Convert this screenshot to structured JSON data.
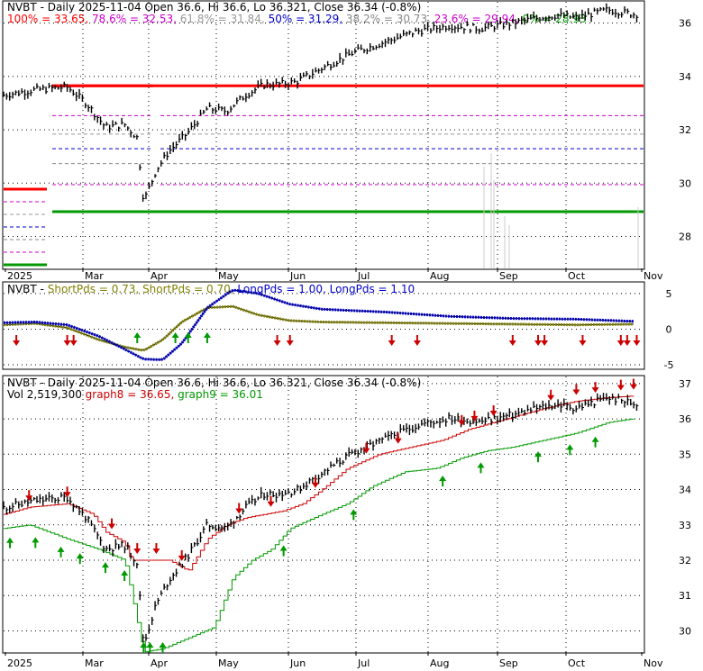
{
  "chart_data": [
    {
      "type": "line",
      "panel": "price-fibonacci",
      "title": "NVBT - Daily 2025-11-04 Open 36.6, Hi 36.6, Lo 36.321, Close 36.34 (-0.8%)",
      "fib_levels": [
        {
          "label": "100%",
          "value": 33.65,
          "text": "100% = 33.65",
          "color": "#ff0000"
        },
        {
          "label": "78.6%",
          "value": 32.53,
          "text": "78.6% = 32.53",
          "color": "#cc00cc"
        },
        {
          "label": "61.8%",
          "value": 31.84,
          "text": "61.8% = 31.84",
          "color": "#999999"
        },
        {
          "label": "50%",
          "value": 31.29,
          "text": "50% = 31.29",
          "color": "#0000cc"
        },
        {
          "label": "38.2%",
          "value": 30.73,
          "text": "38.2% = 30.73",
          "color": "#888888"
        },
        {
          "label": "23.6%",
          "value": 29.94,
          "text": "23.6% = 29.94",
          "color": "#cc00cc"
        },
        {
          "label": "0%",
          "value": 28.93,
          "text": "0% = 28.93",
          "color": "#009900"
        }
      ],
      "x_ticks": [
        "2025",
        "Mar",
        "Apr",
        "May",
        "Jun",
        "Jul",
        "Aug",
        "Sep",
        "Oct",
        "Nov"
      ],
      "y_ticks": [
        "28",
        "30",
        "32",
        "34",
        "36"
      ],
      "ylim": [
        26.8,
        36.8
      ],
      "close_path": {
        "months": [
          0,
          0.5,
          1.0,
          1.3,
          1.6,
          1.9,
          2.1,
          2.2,
          2.4,
          2.6,
          2.9,
          3.2,
          3.5,
          3.8,
          4.1,
          4.3,
          4.6,
          5.0,
          5.5,
          6.0,
          6.5,
          7.0,
          7.5,
          8.0,
          8.4,
          8.7,
          9.0,
          9.5,
          9.9
        ],
        "values": [
          33.3,
          33.5,
          33.6,
          33.0,
          32.1,
          32.2,
          31.7,
          29.3,
          30.5,
          31.2,
          31.9,
          32.8,
          32.7,
          33.3,
          33.7,
          33.7,
          33.8,
          34.3,
          34.9,
          35.3,
          35.7,
          35.9,
          35.8,
          36.0,
          36.2,
          36.3,
          36.2,
          36.5,
          36.34
        ]
      }
    },
    {
      "type": "line",
      "panel": "momentum-oscillator",
      "title": "NVBT - ShortPds = 0.73, ShortPds = 0.70, LongPds = 1.00, LongPds = 1.10",
      "legend": [
        {
          "text": "NVBT - ",
          "color": "#000000"
        },
        {
          "text": "ShortPds = 0.73, ",
          "color": "#808000"
        },
        {
          "text": "ShortPds = 0.70, ",
          "color": "#808000"
        },
        {
          "text": "LongPds = 1.00, ",
          "color": "#0000cc"
        },
        {
          "text": "LongPds = 1.10",
          "color": "#0000cc"
        }
      ],
      "y_ticks": [
        "5",
        "0",
        "-5"
      ],
      "ylim": [
        -5.5,
        6.5
      ],
      "series": [
        {
          "name": "ShortPds",
          "months": [
            0,
            0.5,
            1.0,
            1.5,
            1.9,
            2.2,
            2.5,
            2.8,
            3.2,
            3.6,
            4.0,
            4.5,
            5.0,
            6.0,
            7.0,
            8.0,
            9.0,
            9.9
          ],
          "values": [
            0.6,
            0.8,
            0.2,
            -1.5,
            -2.5,
            -3.0,
            -1.5,
            1.0,
            3.0,
            3.2,
            2.0,
            1.2,
            1.0,
            0.9,
            0.8,
            0.7,
            0.6,
            0.7
          ]
        },
        {
          "name": "LongPds",
          "months": [
            0,
            0.5,
            1.0,
            1.5,
            1.9,
            2.2,
            2.5,
            2.8,
            3.2,
            3.6,
            4.0,
            4.5,
            5.0,
            6.0,
            7.0,
            8.0,
            9.0,
            9.9
          ],
          "values": [
            0.9,
            1.0,
            0.6,
            -1.0,
            -2.8,
            -4.2,
            -4.3,
            -2.0,
            3.0,
            5.5,
            5.0,
            3.5,
            2.8,
            2.4,
            1.8,
            1.5,
            1.4,
            1.1
          ]
        }
      ],
      "down_arrows": [
        0.2,
        1.0,
        1.1,
        4.3,
        4.5,
        6.1,
        6.5,
        8.0,
        8.4,
        8.5,
        9.1,
        9.7,
        9.8,
        9.95
      ],
      "up_arrows": [
        2.1,
        2.7,
        2.9,
        3.2
      ]
    },
    {
      "type": "line",
      "panel": "price-bands",
      "title": "NVBT - Daily 2025-11-04 Open 36.6, Hi 36.6, Lo 36.321, Close 36.34 (-0.8%)",
      "legend": [
        {
          "text": "Vol 2,519,300 ",
          "color": "#000000"
        },
        {
          "text": "graph8 = 36.65, ",
          "color": "#cc0000"
        },
        {
          "text": "graph9 = 36.01",
          "color": "#009900"
        }
      ],
      "x_ticks": [
        "2025",
        "Mar",
        "Apr",
        "May",
        "Jun",
        "Jul",
        "Aug",
        "Sep",
        "Oct",
        "Nov"
      ],
      "y_ticks": [
        "30",
        "31",
        "32",
        "33",
        "34",
        "35",
        "36",
        "37"
      ],
      "ylim": [
        29.4,
        37.2
      ],
      "series": [
        {
          "name": "graph8",
          "months": [
            0,
            0.4,
            1.0,
            1.4,
            1.6,
            1.9,
            2.0,
            2.2,
            2.6,
            2.9,
            3.2,
            3.5,
            3.8,
            4.1,
            4.4,
            4.7,
            5.0,
            5.4,
            5.9,
            6.4,
            6.9,
            7.3,
            7.7,
            8.1,
            8.5,
            9.0,
            9.5,
            9.9
          ],
          "values": [
            33.3,
            33.5,
            33.6,
            33.3,
            32.8,
            32.5,
            32.0,
            32.0,
            32.0,
            31.7,
            32.6,
            33.0,
            33.2,
            33.3,
            33.4,
            33.6,
            34.0,
            34.6,
            35.0,
            35.2,
            35.4,
            35.7,
            35.9,
            36.1,
            36.3,
            36.5,
            36.6,
            36.65
          ]
        },
        {
          "name": "graph9",
          "months": [
            0,
            0.4,
            1.0,
            1.5,
            1.9,
            2.2,
            2.5,
            2.9,
            3.3,
            3.6,
            3.9,
            4.2,
            4.5,
            5.0,
            5.4,
            5.8,
            6.3,
            6.8,
            7.2,
            7.6,
            8.0,
            8.5,
            9.0,
            9.5,
            9.9
          ],
          "values": [
            32.9,
            33.0,
            32.6,
            32.3,
            32.0,
            29.4,
            29.5,
            29.8,
            30.1,
            31.5,
            32.0,
            32.3,
            32.9,
            33.3,
            33.6,
            34.1,
            34.5,
            34.6,
            34.9,
            35.1,
            35.2,
            35.4,
            35.6,
            35.9,
            36.01
          ]
        }
      ],
      "down_arrows": [
        0.4,
        1.0,
        1.7,
        2.1,
        2.4,
        2.8,
        3.7,
        4.2,
        4.9,
        5.7,
        6.2,
        7.2,
        7.4,
        7.7,
        8.6,
        9.0,
        9.3,
        9.7,
        9.9
      ],
      "up_arrows": [
        0.1,
        0.5,
        0.9,
        1.2,
        1.6,
        1.9,
        2.2,
        2.3,
        2.5,
        4.4,
        5.5,
        6.9,
        7.5,
        8.4,
        8.9,
        9.3
      ]
    }
  ]
}
